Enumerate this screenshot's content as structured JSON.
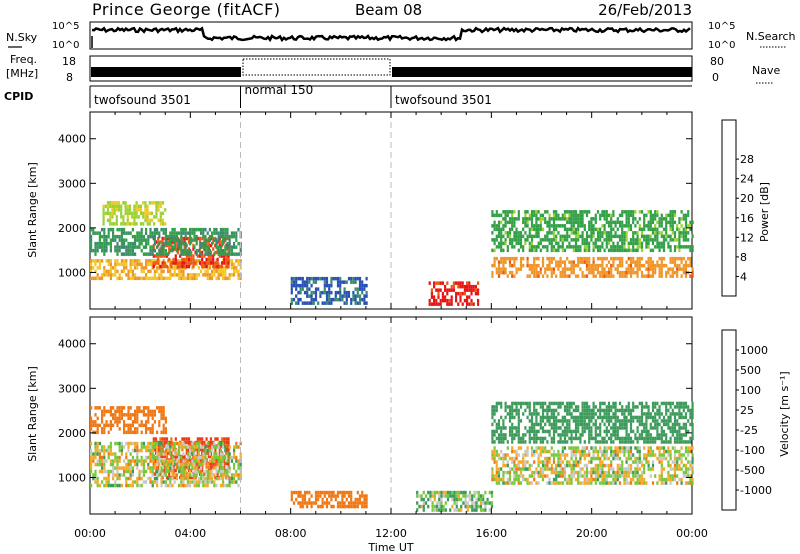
{
  "header": {
    "station": "Prince George (fitACF)",
    "beam": "Beam 08",
    "date": "26/Feb/2013"
  },
  "top_panels": {
    "nsky_label": "N.Sky",
    "nsky_top": "10^5",
    "nsky_bottom": "10^0",
    "nsearch_label": "N.Search",
    "nsearch_top": "10^5",
    "nsearch_bottom": "10^0",
    "freq_label": "Freq.",
    "freq_unit": "[MHz]",
    "freq_top": "18",
    "freq_bottom": "8",
    "nave_label": "Nave",
    "nave_top": "80",
    "nave_bottom": "0",
    "cpid_label": "CPID",
    "cpid_segments": [
      {
        "label": "twofsound 3501",
        "start_hour": 0,
        "end_hour": 6
      },
      {
        "label": "normal 150",
        "start_hour": 6,
        "end_hour": 12
      },
      {
        "label": "twofsound 3501",
        "start_hour": 12,
        "end_hour": 24
      }
    ]
  },
  "colorbars": {
    "power": {
      "title": "Power [dB]",
      "colors": [
        "#1414e0",
        "#2850b4",
        "#3c8a6e",
        "#32a046",
        "#9bd232",
        "#f0c828",
        "#f09628",
        "#eb5a14",
        "#e61414"
      ],
      "ticks": [
        "4",
        "8",
        "12",
        "16",
        "20",
        "24",
        "28"
      ]
    },
    "velocity": {
      "title": "Velocity [m s⁻¹]",
      "colors": [
        "#e61414",
        "#eb3c14",
        "#f07814",
        "#f5aa28",
        "#c8c8c8",
        "#78c83c",
        "#3c9b5a",
        "#327896",
        "#1e50c8"
      ],
      "ticks": [
        "-1000",
        "-500",
        "-100",
        "-25",
        "25",
        "100",
        "500",
        "1000"
      ]
    }
  },
  "chart_data": [
    {
      "type": "heatmap",
      "title": "Power",
      "xlabel": "Time UT",
      "ylabel": "Slant Range [km]",
      "xlim": [
        0,
        24
      ],
      "ylim": [
        180,
        4600
      ],
      "x_tick_labels": [
        "00:00",
        "04:00",
        "08:00",
        "12:00",
        "16:00",
        "20:00",
        "00:00"
      ],
      "y_ticks": [
        1000,
        2000,
        3000,
        4000
      ],
      "value_range": [
        0,
        30
      ],
      "unit": "dB",
      "regions": [
        {
          "t0": 0.0,
          "t1": 6.0,
          "r0": 850,
          "r1": 1300,
          "value": 20
        },
        {
          "t0": 0.5,
          "t1": 3.0,
          "r0": 2100,
          "r1": 2600,
          "value": 16
        },
        {
          "t0": 2.5,
          "t1": 5.5,
          "r0": 1100,
          "r1": 1800,
          "value": 26
        },
        {
          "t0": 0.0,
          "t1": 6.0,
          "r0": 1400,
          "r1": 2000,
          "value": 10
        },
        {
          "t0": 8.0,
          "t1": 11.0,
          "r0": 350,
          "r1": 900,
          "value": 6
        },
        {
          "t0": 13.5,
          "t1": 15.5,
          "r0": 300,
          "r1": 800,
          "value": 28
        },
        {
          "t0": 16.0,
          "t1": 24.0,
          "r0": 900,
          "r1": 1350,
          "value": 22
        },
        {
          "t0": 16.0,
          "t1": 24.0,
          "r0": 1500,
          "r1": 2400,
          "value": 12
        }
      ]
    },
    {
      "type": "heatmap",
      "title": "Velocity",
      "xlabel": "Time UT",
      "ylabel": "Slant Range [km]",
      "xlim": [
        0,
        24
      ],
      "ylim": [
        180,
        4600
      ],
      "x_tick_labels": [
        "00:00",
        "04:00",
        "08:00",
        "12:00",
        "16:00",
        "20:00",
        "00:00"
      ],
      "y_ticks": [
        1000,
        2000,
        3000,
        4000
      ],
      "value_range": [
        -1000,
        1000
      ],
      "unit": "m s^-1",
      "regions": [
        {
          "t0": 0.0,
          "t1": 3.0,
          "r0": 2000,
          "r1": 2600,
          "value": -300
        },
        {
          "t0": 2.5,
          "t1": 5.5,
          "r0": 1000,
          "r1": 1900,
          "value": -600
        },
        {
          "t0": 0.0,
          "t1": 6.0,
          "r0": 800,
          "r1": 1800,
          "value": 0
        },
        {
          "t0": 8.0,
          "t1": 11.0,
          "r0": 350,
          "r1": 700,
          "value": -300
        },
        {
          "t0": 13.0,
          "t1": 16.0,
          "r0": 300,
          "r1": 700,
          "value": 80
        },
        {
          "t0": 16.0,
          "t1": 24.0,
          "r0": 1800,
          "r1": 2700,
          "value": 300
        },
        {
          "t0": 16.0,
          "t1": 24.0,
          "r0": 900,
          "r1": 1700,
          "value": 0
        }
      ]
    }
  ]
}
